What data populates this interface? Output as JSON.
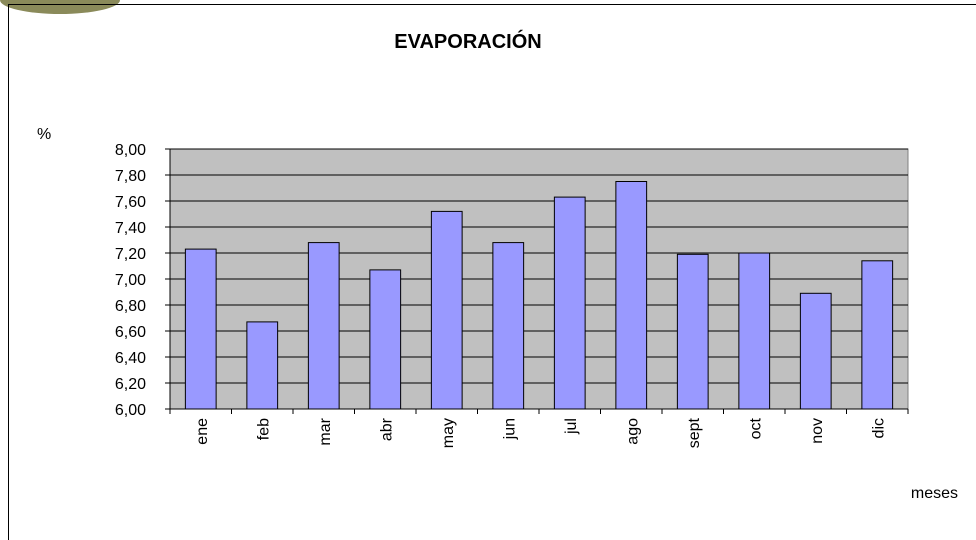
{
  "chart_data": {
    "type": "bar",
    "title": "EVAPORACIÓN",
    "y_label": "%",
    "x_label": "meses",
    "categories": [
      "ene",
      "feb",
      "mar",
      "abr",
      "may",
      "jun",
      "jul",
      "ago",
      "sept",
      "oct",
      "nov",
      "dic"
    ],
    "values": [
      7.23,
      6.67,
      7.28,
      7.07,
      7.52,
      7.28,
      7.63,
      7.75,
      7.19,
      7.2,
      6.89,
      7.14
    ],
    "color": "#9999ff",
    "ylim": [
      6,
      8
    ],
    "yticks": [
      {
        "value": 6,
        "label": "6,00"
      },
      {
        "value": 6.2,
        "label": "6,20"
      },
      {
        "value": 6.4,
        "label": "6,40"
      },
      {
        "value": 6.6,
        "label": "6,60"
      },
      {
        "value": 6.8,
        "label": "6,80"
      },
      {
        "value": 7,
        "label": "7,00"
      },
      {
        "value": 7.2,
        "label": "7,20"
      },
      {
        "value": 7.4,
        "label": "7,40"
      },
      {
        "value": 7.6,
        "label": "7,60"
      },
      {
        "value": 7.8,
        "label": "7,80"
      },
      {
        "value": 8,
        "label": "8,00"
      }
    ],
    "grid": true
  }
}
